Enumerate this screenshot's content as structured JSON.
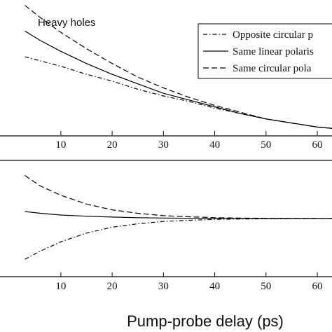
{
  "chart_data": [
    {
      "type": "line",
      "annotation": "Heavy holes",
      "xlim": [
        -2,
        63
      ],
      "ylim": [
        0,
        1
      ],
      "xticks": [
        10,
        20,
        30,
        40,
        50,
        60
      ],
      "xtick_labels": [
        "10",
        "20",
        "30",
        "40",
        "50",
        "60"
      ],
      "grid": false,
      "legend_position": "top-right",
      "series": [
        {
          "name": "Opposite circular p",
          "style": "dash-dot",
          "x": [
            3,
            6,
            10,
            15,
            20,
            25,
            30,
            35,
            40,
            45,
            50,
            55,
            60,
            63
          ],
          "y": [
            0.58,
            0.55,
            0.51,
            0.45,
            0.4,
            0.34,
            0.29,
            0.25,
            0.2,
            0.16,
            0.12,
            0.09,
            0.06,
            0.05
          ]
        },
        {
          "name": "Same linear polaris",
          "style": "solid",
          "x": [
            3,
            6,
            10,
            15,
            20,
            25,
            30,
            35,
            40,
            45,
            50,
            55,
            60,
            63
          ],
          "y": [
            0.77,
            0.7,
            0.62,
            0.53,
            0.45,
            0.38,
            0.31,
            0.26,
            0.21,
            0.16,
            0.12,
            0.09,
            0.06,
            0.05
          ]
        },
        {
          "name": "Same circular pola",
          "style": "dashed",
          "x": [
            3,
            6,
            10,
            15,
            20,
            25,
            30,
            35,
            40,
            45,
            50,
            55,
            60,
            63
          ],
          "y": [
            0.96,
            0.87,
            0.76,
            0.64,
            0.53,
            0.43,
            0.35,
            0.28,
            0.22,
            0.17,
            0.12,
            0.09,
            0.06,
            0.05
          ]
        }
      ]
    },
    {
      "type": "line",
      "xlim": [
        -2,
        63
      ],
      "ylim": [
        -1,
        1
      ],
      "xticks": [
        10,
        20,
        30,
        40,
        50,
        60
      ],
      "xtick_labels": [
        "10",
        "20",
        "30",
        "40",
        "50",
        "60"
      ],
      "xlabel": "Pump-probe delay (ps)",
      "grid": false,
      "series": [
        {
          "style": "dashed",
          "x": [
            3,
            6,
            10,
            15,
            20,
            25,
            30,
            35,
            40,
            45,
            50,
            55,
            60,
            63
          ],
          "y": [
            0.74,
            0.56,
            0.4,
            0.25,
            0.15,
            0.09,
            0.05,
            0.03,
            0.015,
            0.008,
            0.004,
            0.002,
            0.001,
            0.0
          ]
        },
        {
          "style": "solid",
          "x": [
            3,
            6,
            10,
            15,
            20,
            25,
            30,
            35,
            40,
            45,
            50,
            55,
            60,
            63
          ],
          "y": [
            0.12,
            0.09,
            0.06,
            0.04,
            0.025,
            0.015,
            0.008,
            0.004,
            0.002,
            0.001,
            0.0,
            0.0,
            0.0,
            0.0
          ]
        },
        {
          "style": "dash-dot",
          "x": [
            3,
            6,
            10,
            15,
            20,
            25,
            30,
            35,
            40,
            45,
            50,
            55,
            60,
            63
          ],
          "y": [
            -0.7,
            -0.56,
            -0.4,
            -0.25,
            -0.15,
            -0.09,
            -0.05,
            -0.03,
            -0.015,
            -0.008,
            -0.004,
            -0.002,
            -0.001,
            0.0
          ]
        }
      ]
    }
  ]
}
